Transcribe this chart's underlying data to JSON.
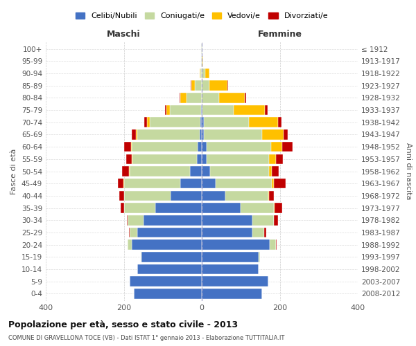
{
  "age_groups": [
    "0-4",
    "5-9",
    "10-14",
    "15-19",
    "20-24",
    "25-29",
    "30-34",
    "35-39",
    "40-44",
    "45-49",
    "50-54",
    "55-59",
    "60-64",
    "65-69",
    "70-74",
    "75-79",
    "80-84",
    "85-89",
    "90-94",
    "95-99",
    "100+"
  ],
  "birth_years": [
    "2008-2012",
    "2003-2007",
    "1998-2002",
    "1993-1997",
    "1988-1992",
    "1983-1987",
    "1978-1982",
    "1973-1977",
    "1968-1972",
    "1963-1967",
    "1958-1962",
    "1953-1957",
    "1948-1952",
    "1943-1947",
    "1938-1942",
    "1933-1937",
    "1928-1932",
    "1923-1927",
    "1918-1922",
    "1913-1917",
    "≤ 1912"
  ],
  "males": {
    "celibi": [
      175,
      185,
      165,
      155,
      180,
      165,
      150,
      120,
      80,
      55,
      30,
      12,
      10,
      5,
      4,
      2,
      0,
      0,
      0,
      0,
      0
    ],
    "coniugati": [
      0,
      0,
      0,
      2,
      10,
      20,
      40,
      80,
      120,
      145,
      155,
      165,
      170,
      160,
      130,
      80,
      40,
      18,
      3,
      2,
      1
    ],
    "vedovi": [
      0,
      0,
      0,
      0,
      0,
      0,
      0,
      0,
      0,
      1,
      1,
      2,
      2,
      4,
      6,
      8,
      15,
      8,
      2,
      0,
      0
    ],
    "divorziati": [
      0,
      0,
      0,
      0,
      0,
      1,
      2,
      8,
      12,
      15,
      18,
      15,
      18,
      10,
      8,
      4,
      2,
      2,
      0,
      0,
      0
    ]
  },
  "females": {
    "nubili": [
      155,
      170,
      145,
      145,
      175,
      130,
      130,
      100,
      60,
      35,
      22,
      12,
      12,
      5,
      5,
      2,
      0,
      0,
      0,
      0,
      0
    ],
    "coniugate": [
      0,
      0,
      0,
      5,
      15,
      30,
      55,
      85,
      110,
      145,
      150,
      160,
      165,
      150,
      115,
      80,
      45,
      20,
      8,
      2,
      1
    ],
    "vedove": [
      0,
      0,
      0,
      0,
      0,
      0,
      0,
      1,
      2,
      5,
      8,
      18,
      30,
      55,
      75,
      80,
      65,
      45,
      12,
      2,
      0
    ],
    "divorziate": [
      0,
      0,
      0,
      0,
      2,
      5,
      10,
      20,
      12,
      30,
      18,
      18,
      25,
      10,
      10,
      6,
      4,
      2,
      0,
      0,
      0
    ]
  },
  "colors": {
    "celibi": "#4472c4",
    "coniugati": "#c5d9a0",
    "vedovi": "#ffc000",
    "divorziati": "#c00000"
  },
  "title": "Popolazione per età, sesso e stato civile - 2013",
  "subtitle": "COMUNE DI GRAVELLONA TOCE (VB) - Dati ISTAT 1° gennaio 2013 - Elaborazione TUTTITALIA.IT",
  "xlabel_left": "Maschi",
  "xlabel_right": "Femmine",
  "ylabel_left": "Fasce di età",
  "ylabel_right": "Anni di nascita",
  "xlim": 400,
  "legend_labels": [
    "Celibi/Nubili",
    "Coniugati/e",
    "Vedovi/e",
    "Divorziati/e"
  ],
  "background_color": "#ffffff"
}
